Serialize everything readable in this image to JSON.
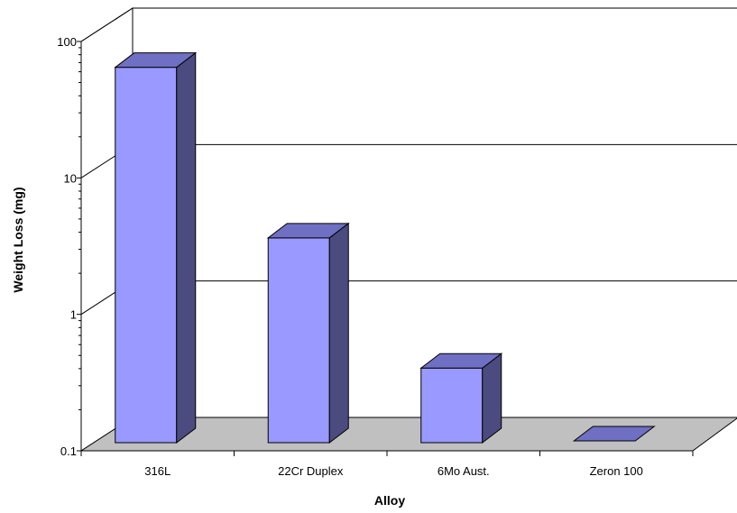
{
  "chart_data": {
    "type": "bar",
    "style": "3d-column",
    "xlabel": "Alloy",
    "ylabel": "Weight Loss (mg)",
    "yscale": "log",
    "ylim": [
      0.1,
      100
    ],
    "yticks": [
      {
        "value": 0.1,
        "label": "0.1"
      },
      {
        "value": 1,
        "label": "1"
      },
      {
        "value": 10,
        "label": "10"
      },
      {
        "value": 100,
        "label": "100"
      }
    ],
    "categories": [
      "316L",
      "22Cr Duplex",
      "6Mo Aust.",
      "Zeron 100"
    ],
    "values": [
      80,
      4.5,
      0.5,
      0.1
    ],
    "grid": true,
    "colors": {
      "bar_front": "#9999ff",
      "bar_side": "#4b4b80",
      "bar_top": "#6f6fc4",
      "floor": "#c0c0c0",
      "gridline": "#000000"
    }
  }
}
